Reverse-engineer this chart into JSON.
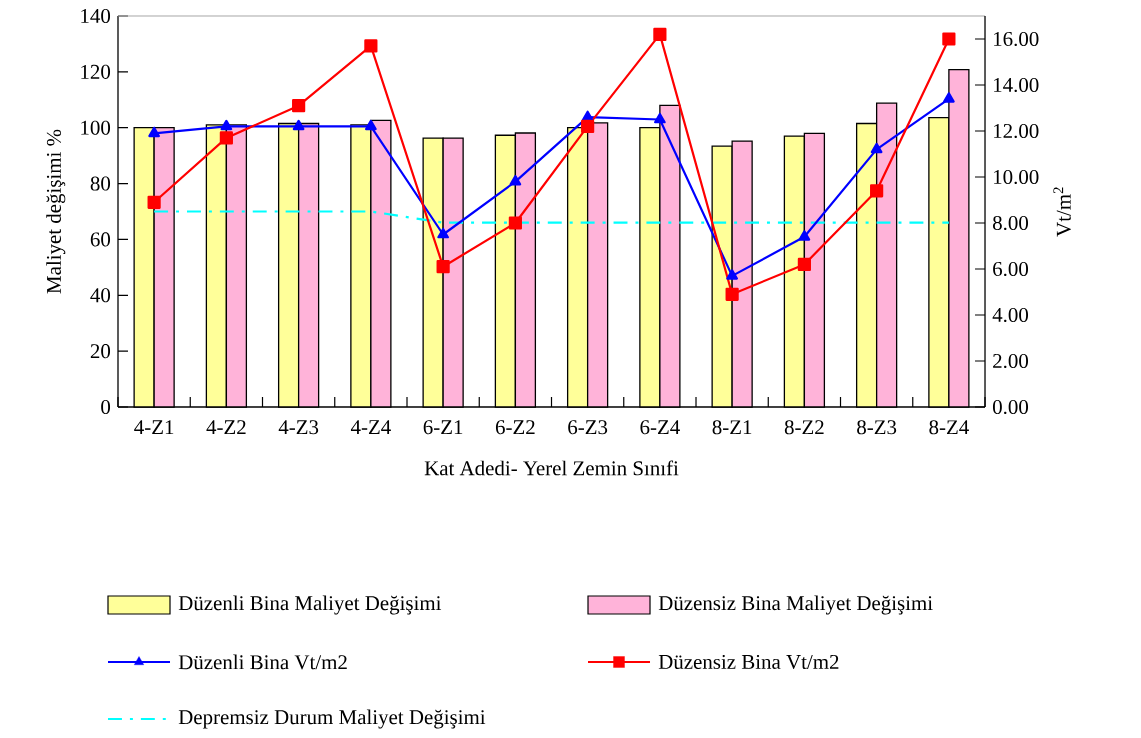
{
  "chart_data": {
    "type": "bar",
    "xlabel": "Kat Adedi- Yerel Zemin Sınıfi",
    "ylabel": "Maliyet değişimi %",
    "y2label": "Vt/m$^{2}$",
    "categories": [
      "4-Z1",
      "4-Z2",
      "4-Z3",
      "4-Z4",
      "6-Z1",
      "6-Z2",
      "6-Z3",
      "6-Z4",
      "8-Z1",
      "8-Z2",
      "8-Z3",
      "8-Z4"
    ],
    "series": [
      {
        "name": "Düzenli Bina Maliyet Değişimi",
        "color": "#ffff99",
        "values": [
          100,
          101,
          101.5,
          101,
          96.3,
          97.3,
          100,
          100,
          93.4,
          97,
          101.5,
          103.6
        ]
      },
      {
        "name": "Düzensiz Bina Maliyet Değişimi",
        "color": "#ffb3d9",
        "values": [
          100,
          101,
          101.5,
          102.6,
          96.3,
          98.1,
          101.7,
          108,
          95.2,
          98,
          108.8,
          120.8
        ]
      },
      {
        "name": "Düzenli Bina Vt/m2",
        "type": "line",
        "axis": "y2",
        "color": "#0000ff",
        "marker": "triangle",
        "values": [
          11.9,
          12.2,
          12.2,
          12.2,
          7.5,
          9.8,
          12.6,
          12.5,
          5.7,
          7.4,
          11.2,
          13.4
        ]
      },
      {
        "name": "Düzensiz Bina Vt/m2",
        "type": "line",
        "axis": "y2",
        "color": "#ff0000",
        "marker": "square",
        "values": [
          8.9,
          11.7,
          13.1,
          15.7,
          6.1,
          8.0,
          12.2,
          16.2,
          4.9,
          6.2,
          9.4,
          16.0
        ]
      },
      {
        "name": "Depremsiz Durum Maliyet Değişimi",
        "type": "line",
        "color": "#00ffff",
        "marker": "none",
        "line_style": "dashdot",
        "values": [
          70,
          70,
          70,
          70,
          66,
          66,
          66,
          66,
          66,
          66,
          66,
          66
        ]
      }
    ],
    "ylim": [
      0,
      140
    ],
    "yticks": [
      0,
      20,
      40,
      60,
      80,
      100,
      120,
      140
    ],
    "y2lim": [
      0,
      17
    ],
    "y2ticks": [
      {
        "value": 0,
        "label": "0.00"
      },
      {
        "value": 2,
        "label": "2.00"
      },
      {
        "value": 4,
        "label": "4.00"
      },
      {
        "value": 6,
        "label": "6.00"
      },
      {
        "value": 8,
        "label": "8.00"
      },
      {
        "value": 10,
        "label": "10.00"
      },
      {
        "value": 12,
        "label": "12.00"
      },
      {
        "value": 14,
        "label": "14.00"
      },
      {
        "value": 16,
        "label": "16.00"
      }
    ],
    "legend": "bottom"
  }
}
